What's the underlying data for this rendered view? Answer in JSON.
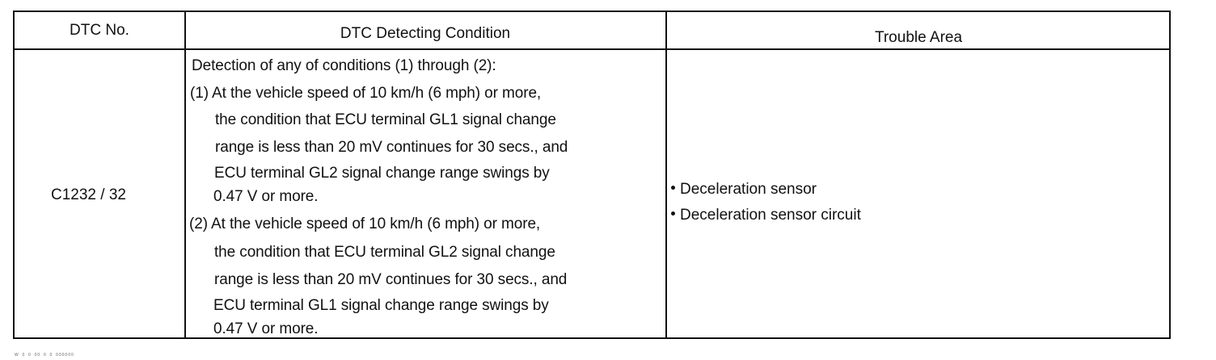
{
  "table": {
    "headers": {
      "dtc_no": "DTC No.",
      "condition": "DTC Detecting Condition",
      "trouble_area": "Trouble Area"
    },
    "row": {
      "dtc_no": "C1232 / 32",
      "condition_lines": [
        "Detection of any of conditions (1) through (2):",
        "(1) At the vehicle speed of 10 km/h (6 mph) or more,",
        "the condition that ECU terminal GL1 signal change",
        "range is less than 20 mV continues for 30 secs., and",
        "ECU terminal GL2 signal change range swings by",
        "0.47 V or more.",
        "(2) At the vehicle speed of 10 km/h (6 mph) or more,",
        "the condition that ECU terminal GL2 signal change",
        "range is less than 20 mV continues for 30 secs., and",
        "ECU terminal GL1 signal change range swings by",
        "0.47 V or more."
      ],
      "trouble_areas": [
        "Deceleration sensor",
        "Deceleration sensor circuit"
      ]
    }
  },
  "footnote": "W_0_0_00_0_0_000000"
}
